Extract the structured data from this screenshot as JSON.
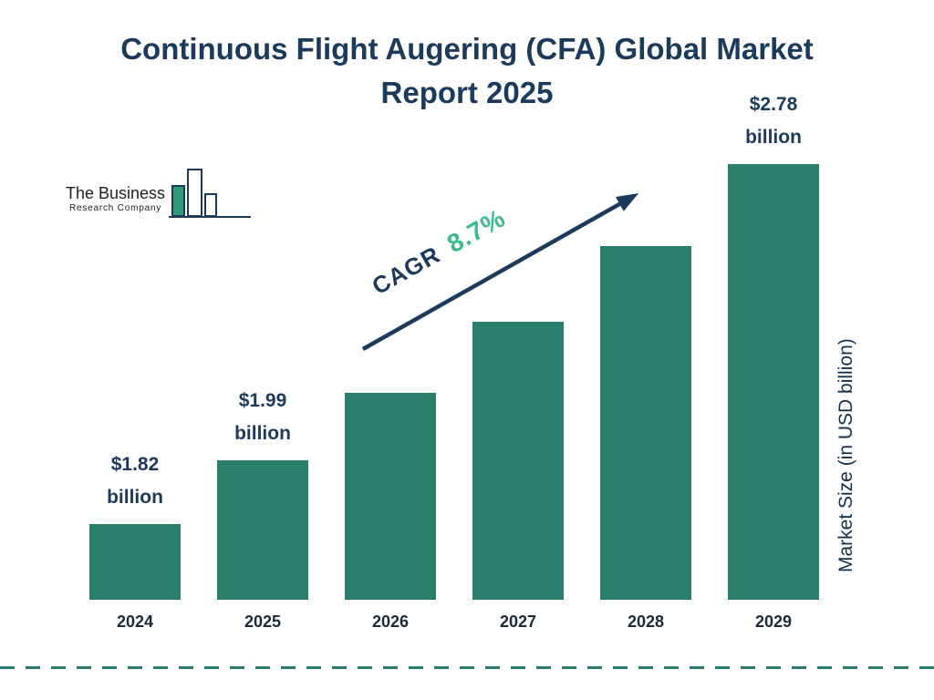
{
  "page": {
    "title": "Continuous Flight Augering (CFA) Global Market Report 2025",
    "logo": {
      "line1": "The Business",
      "line2": "Research Company"
    },
    "ylabel": "Market Size (in USD billion)",
    "cagr_label": "CAGR",
    "cagr_value": "8.7%"
  },
  "colors": {
    "bar": "#2a7e6e",
    "navy": "#1b3a5c",
    "accent_green": "#3abb8d",
    "logo_bar_fill": "#2f9a77"
  },
  "chart_data": {
    "type": "bar",
    "title": "Continuous Flight Augering (CFA) Global Market Report 2025",
    "categories": [
      "2024",
      "2025",
      "2026",
      "2027",
      "2028",
      "2029"
    ],
    "values": [
      1.82,
      1.99,
      2.17,
      2.36,
      2.56,
      2.78
    ],
    "bar_labels": [
      {
        "index": 0,
        "amount": "$1.82",
        "unit": "billion"
      },
      {
        "index": 1,
        "amount": "$1.99",
        "unit": "billion"
      },
      {
        "index": 5,
        "amount": "$2.78",
        "unit": "billion"
      }
    ],
    "xlabel": "",
    "ylabel": "Market Size (in USD billion)",
    "ylim": [
      1.62,
      2.9
    ],
    "grid": false,
    "legend": false,
    "cagr": "8.7%",
    "bar_color": "#2a7e6e"
  }
}
